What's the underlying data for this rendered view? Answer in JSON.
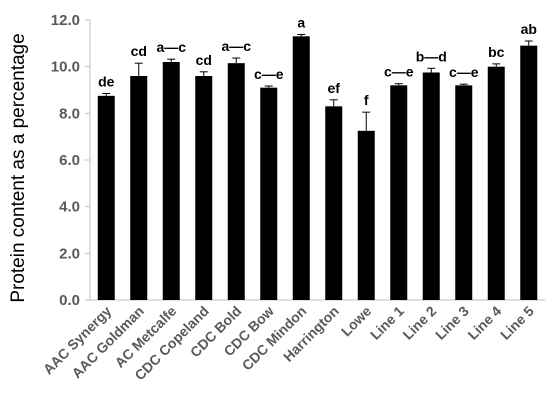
{
  "chart_data": {
    "type": "bar",
    "title": "",
    "xlabel": "",
    "ylabel": "Protein content as a percentage",
    "ylim": [
      0,
      12
    ],
    "yticks": [
      "0.0",
      "2.0",
      "4.0",
      "6.0",
      "8.0",
      "10.0",
      "12.0"
    ],
    "grid": false,
    "legend": "none",
    "bar_color": "#000000",
    "categories": [
      "AAC Synergy",
      "AAC Goldman",
      "AC Metcalfe",
      "CDC Copeland",
      "CDC Bold",
      "CDC Bow",
      "CDC Mindon",
      "Harrington",
      "Lowe",
      "Line 1",
      "Line 2",
      "Line 3",
      "Line 4",
      "Line 5"
    ],
    "values": [
      8.75,
      9.6,
      10.2,
      9.6,
      10.15,
      9.1,
      11.3,
      8.3,
      7.25,
      9.2,
      9.75,
      9.2,
      10.0,
      10.9
    ],
    "errors": [
      0.1,
      0.55,
      0.12,
      0.18,
      0.22,
      0.07,
      0.08,
      0.28,
      0.8,
      0.07,
      0.18,
      0.05,
      0.12,
      0.2
    ],
    "significance_labels": [
      "de",
      "cd",
      "a—c",
      "cd",
      "a—c",
      "c—e",
      "a",
      "ef",
      "f",
      "c—e",
      "b—d",
      "c—e",
      "bc",
      "ab"
    ]
  }
}
